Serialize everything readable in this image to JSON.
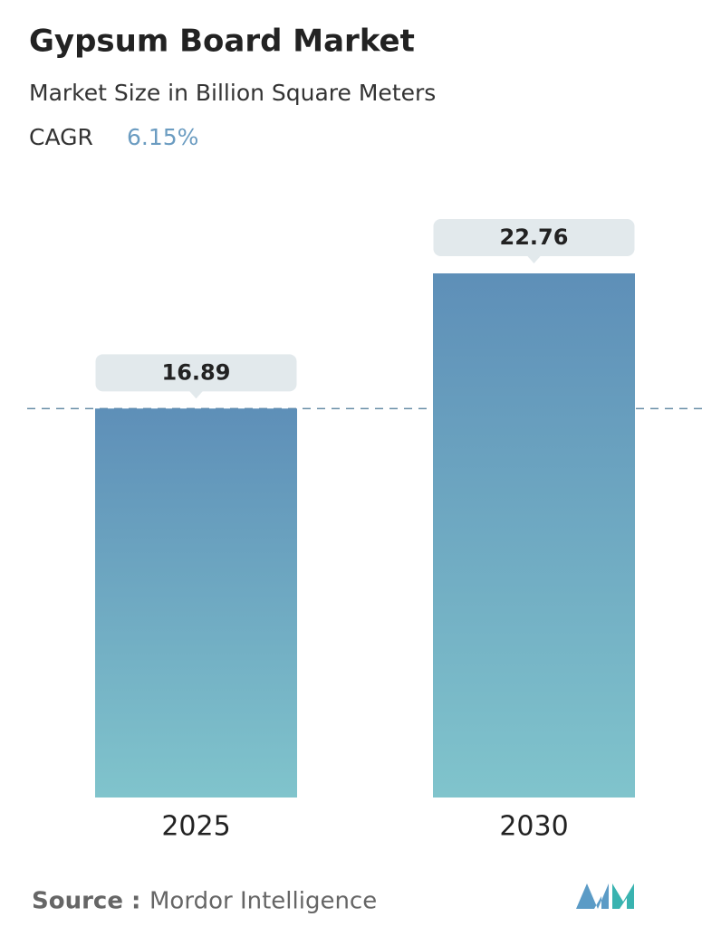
{
  "chart_data": {
    "type": "bar",
    "title": "Gypsum Board Market",
    "subtitle": "Market Size in Billion Square Meters",
    "cagr_label": "CAGR",
    "cagr_value": "6.15%",
    "categories": [
      "2025",
      "2030"
    ],
    "values": [
      16.89,
      22.76
    ],
    "color": "#6a9fc0",
    "source_label": "Source :",
    "source": "Mordor Intelligence"
  }
}
